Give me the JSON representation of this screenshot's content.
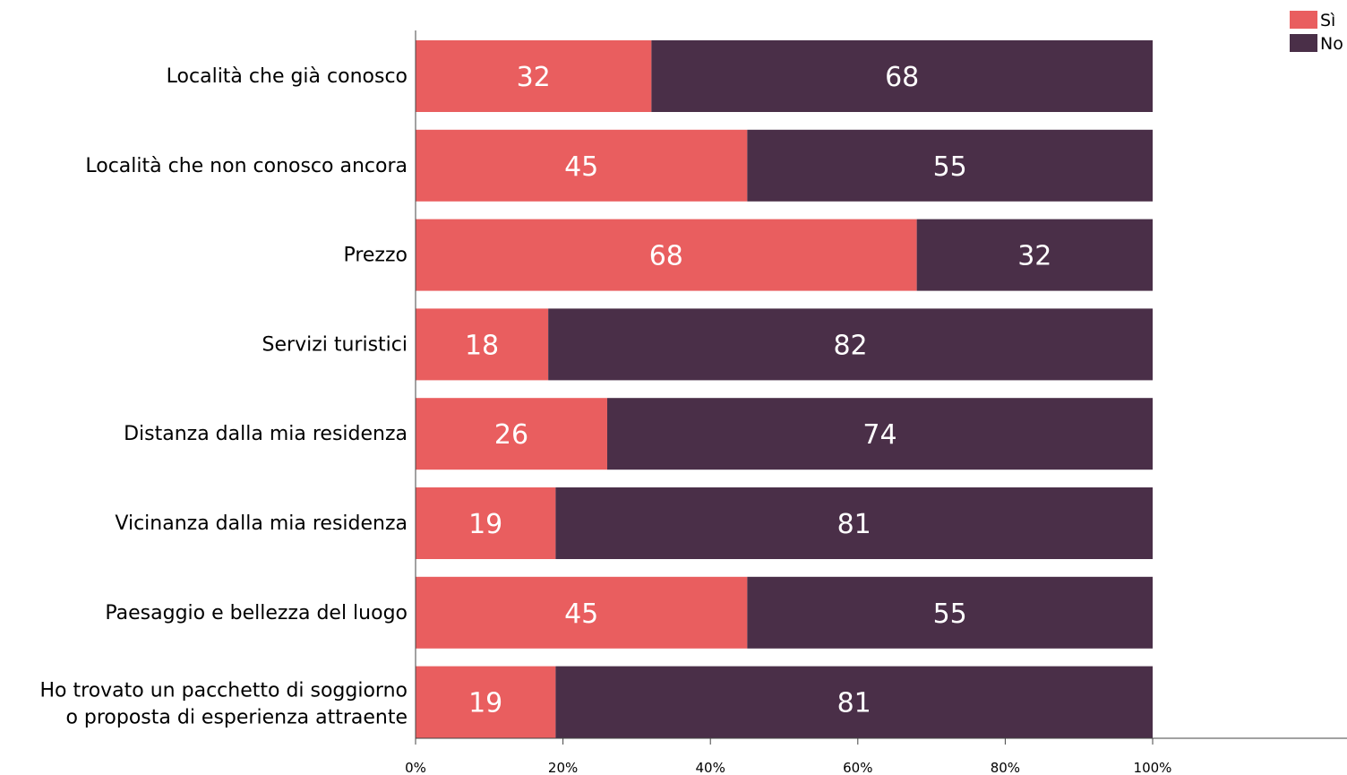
{
  "chart_data": {
    "type": "bar",
    "orientation": "horizontal",
    "stacked": true,
    "categories": [
      [
        "Località  che già  conosco"
      ],
      [
        "Località  che non conosco ancora"
      ],
      [
        "Prezzo"
      ],
      [
        "Servizi turistici"
      ],
      [
        "Distanza dalla mia residenza"
      ],
      [
        "Vicinanza dalla mia residenza"
      ],
      [
        "Paesaggio e bellezza del luogo"
      ],
      [
        "Ho trovato un pacchetto di soggiorno",
        "o proposta di esperienza attraente"
      ]
    ],
    "series": [
      {
        "name": "Sì",
        "color": "#e95e5f",
        "values": [
          32,
          45,
          68,
          18,
          26,
          19,
          45,
          19
        ]
      },
      {
        "name": "No",
        "color": "#4a2f48",
        "values": [
          68,
          55,
          32,
          82,
          74,
          81,
          55,
          81
        ]
      }
    ],
    "xlim": [
      0,
      100
    ],
    "xticks": [
      "0%",
      "20%",
      "40%",
      "60%",
      "80%",
      "100%"
    ],
    "xtick_values": [
      0,
      20,
      40,
      60,
      80,
      100
    ],
    "grid": false,
    "legend_position": "top-right"
  }
}
